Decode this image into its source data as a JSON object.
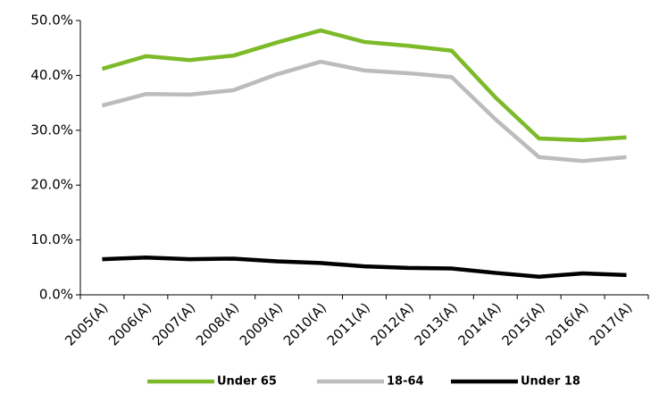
{
  "chart_data": {
    "type": "line",
    "categories": [
      "2005(A)",
      "2006(A)",
      "2007(A)",
      "2008(A)",
      "2009(A)",
      "2010(A)",
      "2011(A)",
      "2012(A)",
      "2013(A)",
      "2014(A)",
      "2015(A)",
      "2016(A)",
      "2017(A)"
    ],
    "series": [
      {
        "name": "Under 65",
        "color": "#7dba29",
        "values": [
          41.2,
          43.5,
          42.8,
          43.6,
          46.0,
          48.2,
          46.1,
          45.4,
          44.5,
          36.0,
          28.5,
          28.2,
          28.7
        ]
      },
      {
        "name": "18-64",
        "color": "#bcbcbc",
        "values": [
          34.5,
          36.6,
          36.5,
          37.3,
          40.2,
          42.5,
          40.9,
          40.4,
          39.7,
          32.0,
          25.1,
          24.4,
          25.1
        ]
      },
      {
        "name": "Under 18",
        "color": "#000000",
        "values": [
          6.5,
          6.8,
          6.5,
          6.6,
          6.1,
          5.8,
          5.2,
          4.9,
          4.8,
          4.0,
          3.3,
          3.9,
          3.6
        ]
      }
    ],
    "ylim": [
      0,
      50
    ],
    "yticks": [
      {
        "value": 0,
        "label": "0.0%"
      },
      {
        "value": 10,
        "label": "10.0%"
      },
      {
        "value": 20,
        "label": "20.0%"
      },
      {
        "value": 30,
        "label": "30.0%"
      },
      {
        "value": 40,
        "label": "40.0%"
      },
      {
        "value": 50,
        "label": "50.0%"
      }
    ],
    "grid": false,
    "legend": "bottom"
  }
}
